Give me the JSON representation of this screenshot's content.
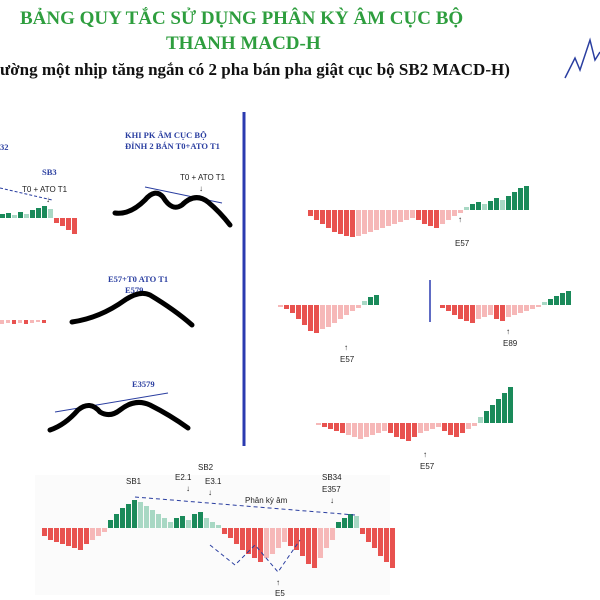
{
  "header": {
    "title_line1": "BẢNG QUY TẮC SỬ DỤNG PHÂN KỲ ÂM CỤC BỘ",
    "title_line2": "THANH MACD-H",
    "subtitle": "ường một nhịp tăng ngắn có 2 pha bán pha giật cục bộ SB2 MACD-H)"
  },
  "left_panel": {
    "sb2_fragment": "32",
    "sb3": "SB3",
    "t0_ato_left": "T0 + ATO T1",
    "khi_line1": "KHI PK ÂM CỤC BỘ",
    "khi_line2": "ĐỈNH 2 BÁN T0+ATO T1",
    "t0_ato_right": "T0 + ATO T1",
    "e57_line1": "E57+T0 ATO T1",
    "e57_line2": "E579",
    "e3579": "E3579"
  },
  "right_panel": {
    "e57_top": "E57",
    "e57_mid": "E57",
    "e89": "E89",
    "e57_low": "E57"
  },
  "bottom_panel": {
    "sb1": "SB1",
    "e21": "E2.1",
    "sb2": "SB2",
    "e31": "E3.1",
    "sb34": "SB34",
    "e357": "E357",
    "phan_ky_am": "Phân kỳ âm",
    "e5": "E5"
  },
  "colors": {
    "title_green": "#2e9e3e",
    "bar_green": "#1a8a5a",
    "bar_light_green": "#a8d8c4",
    "bar_red": "#e8524f",
    "bar_pink": "#f6b8b8",
    "divider_blue": "#2b3bb0",
    "label_blue": "#2a3ea0"
  }
}
